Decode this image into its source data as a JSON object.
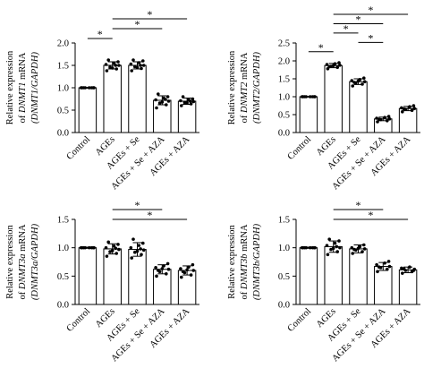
{
  "chart_data": [
    {
      "type": "bar",
      "panel": "top-left",
      "ylabel_line1": "Relative expression",
      "ylabel_line2_prefix": "of ",
      "ylabel_line2_gene": "DNMT1",
      "ylabel_line2_suffix": " mRNA",
      "ylabel_line3": "(DNMT1/GAPDH)",
      "categories": [
        "Control",
        "AGEs",
        "AGEs + Se",
        "AGEs + Se + AZA",
        "AGEs + AZA"
      ],
      "values": [
        1.0,
        1.5,
        1.5,
        0.72,
        0.7
      ],
      "errors": [
        0.01,
        0.08,
        0.08,
        0.1,
        0.07
      ],
      "points": [
        [
          1.0,
          1.0,
          1.0,
          1.0,
          1.0,
          1.0,
          1.0,
          1.0
        ],
        [
          1.38,
          1.42,
          1.46,
          1.5,
          1.52,
          1.55,
          1.58,
          1.62,
          1.44,
          1.5
        ],
        [
          1.38,
          1.43,
          1.47,
          1.5,
          1.53,
          1.56,
          1.6,
          1.62,
          1.45,
          1.5
        ],
        [
          0.55,
          0.62,
          0.66,
          0.7,
          0.73,
          0.77,
          0.8,
          0.86,
          0.68,
          0.74
        ],
        [
          0.6,
          0.64,
          0.67,
          0.69,
          0.71,
          0.73,
          0.75,
          0.8,
          0.66,
          0.7
        ]
      ],
      "ylim": [
        0,
        2.0
      ],
      "yticks": [
        "0.0",
        "0.5",
        "1.0",
        "1.5",
        "2.0"
      ],
      "significance": [
        {
          "from": 0,
          "to": 1,
          "label": "*"
        },
        {
          "from": 1,
          "to": 3,
          "label": "*"
        },
        {
          "from": 1,
          "to": 4,
          "label": "*"
        }
      ]
    },
    {
      "type": "bar",
      "panel": "top-right",
      "ylabel_line1": "Relative expression",
      "ylabel_line2_prefix": "of ",
      "ylabel_line2_gene": "DNMT2",
      "ylabel_line2_suffix": " mRNA",
      "ylabel_line3": "(DNMT2/GAPDH)",
      "categories": [
        "Control",
        "AGEs",
        "AGEs + Se",
        "AGEs + Se + AZA",
        "AGEs + AZA"
      ],
      "values": [
        1.0,
        1.87,
        1.42,
        0.38,
        0.67
      ],
      "errors": [
        0.01,
        0.06,
        0.08,
        0.05,
        0.06
      ],
      "points": [
        [
          1.0,
          1.0,
          1.0,
          1.0,
          1.0,
          1.0,
          1.0,
          1.0
        ],
        [
          1.78,
          1.82,
          1.85,
          1.88,
          1.9,
          1.92,
          1.95,
          1.84,
          1.87
        ],
        [
          1.3,
          1.35,
          1.38,
          1.42,
          1.45,
          1.48,
          1.52,
          1.4,
          1.44
        ],
        [
          0.3,
          0.33,
          0.36,
          0.38,
          0.4,
          0.42,
          0.45,
          0.37
        ],
        [
          0.58,
          0.62,
          0.65,
          0.67,
          0.69,
          0.72,
          0.75,
          0.66
        ]
      ],
      "ylim": [
        0,
        2.5
      ],
      "yticks": [
        "0.0",
        "0.5",
        "1.0",
        "1.5",
        "2.0",
        "2.5"
      ],
      "significance": [
        {
          "from": 0,
          "to": 1,
          "label": "*"
        },
        {
          "from": 1,
          "to": 2,
          "label": "*"
        },
        {
          "from": 1,
          "to": 3,
          "label": "*"
        },
        {
          "from": 1,
          "to": 4,
          "label": "*"
        },
        {
          "from": 2,
          "to": 3,
          "label": "*"
        }
      ]
    },
    {
      "type": "bar",
      "panel": "bottom-left",
      "ylabel_line1": "Relative expression",
      "ylabel_line2_prefix": "of ",
      "ylabel_line2_gene": "DNMT3a",
      "ylabel_line2_suffix": " mRNA",
      "ylabel_line3": "(DNMT3a/GAPDH)",
      "categories": [
        "Control",
        "AGEs",
        "AGEs + Se",
        "AGEs + Se + AZA",
        "AGEs + AZA"
      ],
      "values": [
        1.0,
        0.98,
        0.97,
        0.62,
        0.6
      ],
      "errors": [
        0.01,
        0.09,
        0.12,
        0.08,
        0.08
      ],
      "points": [
        [
          1.0,
          1.0,
          1.0,
          1.0,
          1.0,
          1.0,
          1.0,
          1.0
        ],
        [
          0.85,
          0.9,
          0.93,
          0.97,
          1.0,
          1.03,
          1.06,
          1.1,
          0.95,
          0.99
        ],
        [
          0.82,
          0.88,
          0.92,
          0.96,
          1.0,
          1.04,
          1.08,
          1.15,
          0.94,
          0.98
        ],
        [
          0.5,
          0.54,
          0.58,
          0.62,
          0.65,
          0.68,
          0.72,
          0.6,
          0.63
        ],
        [
          0.48,
          0.52,
          0.56,
          0.6,
          0.63,
          0.66,
          0.7,
          0.58,
          0.61
        ]
      ],
      "ylim": [
        0,
        1.5
      ],
      "yticks": [
        "0.0",
        "0.5",
        "1.0",
        "1.5"
      ],
      "significance": [
        {
          "from": 1,
          "to": 3,
          "label": "*"
        },
        {
          "from": 1,
          "to": 4,
          "label": "*"
        }
      ]
    },
    {
      "type": "bar",
      "panel": "bottom-right",
      "ylabel_line1": "Relative expression",
      "ylabel_line2_prefix": "of ",
      "ylabel_line2_gene": "DNMT3b",
      "ylabel_line2_suffix": " mRNA",
      "ylabel_line3": "(DNMT3b/GAPDH)",
      "categories": [
        "Control",
        "AGEs",
        "AGEs + Se",
        "AGEs + Se + AZA",
        "AGEs + AZA"
      ],
      "values": [
        1.0,
        1.02,
        0.98,
        0.67,
        0.61
      ],
      "errors": [
        0.01,
        0.1,
        0.07,
        0.07,
        0.05
      ],
      "points": [
        [
          1.0,
          1.0,
          1.0,
          1.0,
          1.0,
          1.0,
          1.0,
          1.0
        ],
        [
          0.88,
          0.93,
          0.97,
          1.0,
          1.04,
          1.08,
          1.12,
          1.15,
          0.99,
          1.02
        ],
        [
          0.9,
          0.93,
          0.96,
          0.98,
          1.0,
          1.02,
          1.05,
          0.97,
          0.99
        ],
        [
          0.58,
          0.62,
          0.65,
          0.67,
          0.7,
          0.73,
          0.76,
          0.66
        ],
        [
          0.55,
          0.58,
          0.6,
          0.62,
          0.64,
          0.66,
          0.6,
          0.63
        ]
      ],
      "ylim": [
        0,
        1.5
      ],
      "yticks": [
        "0.0",
        "0.5",
        "1.0",
        "1.5"
      ],
      "significance": [
        {
          "from": 1,
          "to": 3,
          "label": "*"
        },
        {
          "from": 1,
          "to": 4,
          "label": "*"
        }
      ]
    }
  ]
}
